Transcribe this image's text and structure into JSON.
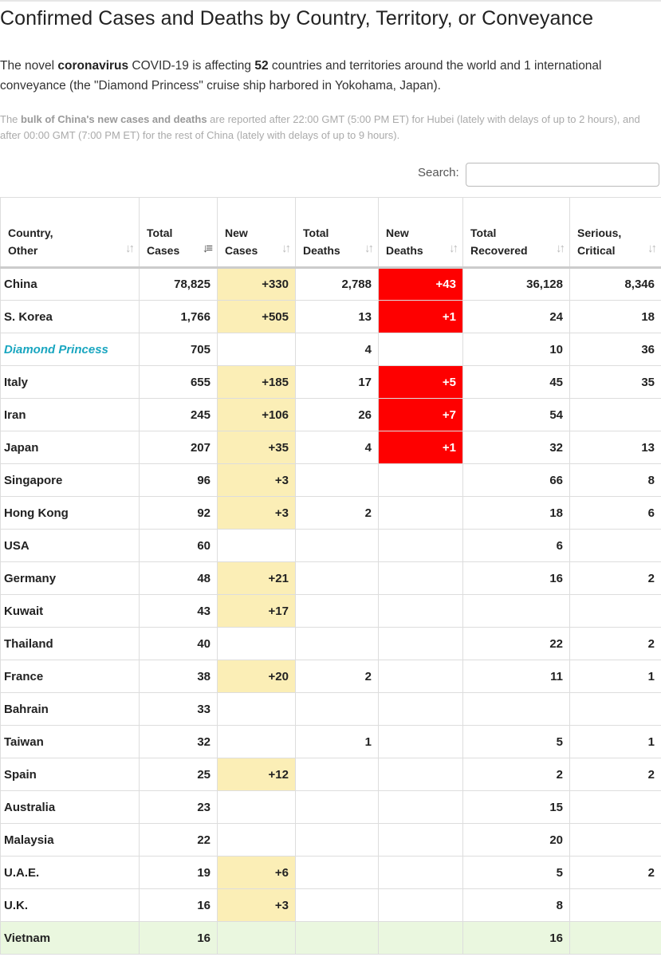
{
  "page": {
    "title": "Confirmed Cases and Deaths by Country, Territory, or Conveyance",
    "intro": {
      "t1": "The novel ",
      "b1": "coronavirus",
      "t2": " COVID-19 is affecting ",
      "b2": "52",
      "t3": " countries and territories around the world and 1 international conveyance (the \"Diamond Princess\" cruise ship harbored in Yokohama, Japan)."
    },
    "note": {
      "t1": "The ",
      "b1": "bulk of China's new cases and deaths",
      "t2": " are reported after 22:00 GMT (5:00 PM ET) for Hubei (lately with delays of up to 2 hours), and after 00:00 GMT (7:00 PM ET) for the rest of China (lately with delays of up to 9 hours)."
    }
  },
  "search": {
    "label": "Search:",
    "value": "",
    "placeholder": ""
  },
  "table": {
    "columns": [
      {
        "l1": "Country,",
        "l2": "Other",
        "sort": "unsorted"
      },
      {
        "l1": "Total",
        "l2": "Cases",
        "sort": "descending"
      },
      {
        "l1": "New",
        "l2": "Cases",
        "sort": "unsorted"
      },
      {
        "l1": "Total",
        "l2": "Deaths",
        "sort": "unsorted"
      },
      {
        "l1": "New",
        "l2": "Deaths",
        "sort": "unsorted"
      },
      {
        "l1": "Total",
        "l2": "Recovered",
        "sort": "unsorted"
      },
      {
        "l1": "Serious,",
        "l2": "Critical",
        "sort": "unsorted"
      }
    ],
    "rows": [
      {
        "country": "China",
        "total_cases": "78,825",
        "new_cases": "+330",
        "total_deaths": "2,788",
        "new_deaths": "+43",
        "total_recovered": "36,128",
        "serious_critical": "8,346"
      },
      {
        "country": "S. Korea",
        "total_cases": "1,766",
        "new_cases": "+505",
        "total_deaths": "13",
        "new_deaths": "+1",
        "total_recovered": "24",
        "serious_critical": "18"
      },
      {
        "country": "Diamond Princess",
        "conveyance": true,
        "total_cases": "705",
        "new_cases": "",
        "total_deaths": "4",
        "new_deaths": "",
        "total_recovered": "10",
        "serious_critical": "36"
      },
      {
        "country": "Italy",
        "total_cases": "655",
        "new_cases": "+185",
        "total_deaths": "17",
        "new_deaths": "+5",
        "total_recovered": "45",
        "serious_critical": "35"
      },
      {
        "country": "Iran",
        "total_cases": "245",
        "new_cases": "+106",
        "total_deaths": "26",
        "new_deaths": "+7",
        "total_recovered": "54",
        "serious_critical": ""
      },
      {
        "country": "Japan",
        "total_cases": "207",
        "new_cases": "+35",
        "total_deaths": "4",
        "new_deaths": "+1",
        "total_recovered": "32",
        "serious_critical": "13"
      },
      {
        "country": "Singapore",
        "total_cases": "96",
        "new_cases": "+3",
        "total_deaths": "",
        "new_deaths": "",
        "total_recovered": "66",
        "serious_critical": "8"
      },
      {
        "country": "Hong Kong",
        "total_cases": "92",
        "new_cases": "+3",
        "total_deaths": "2",
        "new_deaths": "",
        "total_recovered": "18",
        "serious_critical": "6"
      },
      {
        "country": "USA",
        "total_cases": "60",
        "new_cases": "",
        "total_deaths": "",
        "new_deaths": "",
        "total_recovered": "6",
        "serious_critical": ""
      },
      {
        "country": "Germany",
        "total_cases": "48",
        "new_cases": "+21",
        "total_deaths": "",
        "new_deaths": "",
        "total_recovered": "16",
        "serious_critical": "2"
      },
      {
        "country": "Kuwait",
        "total_cases": "43",
        "new_cases": "+17",
        "total_deaths": "",
        "new_deaths": "",
        "total_recovered": "",
        "serious_critical": ""
      },
      {
        "country": "Thailand",
        "total_cases": "40",
        "new_cases": "",
        "total_deaths": "",
        "new_deaths": "",
        "total_recovered": "22",
        "serious_critical": "2"
      },
      {
        "country": "France",
        "total_cases": "38",
        "new_cases": "+20",
        "total_deaths": "2",
        "new_deaths": "",
        "total_recovered": "11",
        "serious_critical": "1"
      },
      {
        "country": "Bahrain",
        "total_cases": "33",
        "new_cases": "",
        "total_deaths": "",
        "new_deaths": "",
        "total_recovered": "",
        "serious_critical": ""
      },
      {
        "country": "Taiwan",
        "total_cases": "32",
        "new_cases": "",
        "total_deaths": "1",
        "new_deaths": "",
        "total_recovered": "5",
        "serious_critical": "1"
      },
      {
        "country": "Spain",
        "total_cases": "25",
        "new_cases": "+12",
        "total_deaths": "",
        "new_deaths": "",
        "total_recovered": "2",
        "serious_critical": "2"
      },
      {
        "country": "Australia",
        "total_cases": "23",
        "new_cases": "",
        "total_deaths": "",
        "new_deaths": "",
        "total_recovered": "15",
        "serious_critical": ""
      },
      {
        "country": "Malaysia",
        "total_cases": "22",
        "new_cases": "",
        "total_deaths": "",
        "new_deaths": "",
        "total_recovered": "20",
        "serious_critical": ""
      },
      {
        "country": "U.A.E.",
        "total_cases": "19",
        "new_cases": "+6",
        "total_deaths": "",
        "new_deaths": "",
        "total_recovered": "5",
        "serious_critical": "2"
      },
      {
        "country": "U.K.",
        "total_cases": "16",
        "new_cases": "+3",
        "total_deaths": "",
        "new_deaths": "",
        "total_recovered": "8",
        "serious_critical": ""
      },
      {
        "country": "Vietnam",
        "highlight": "green",
        "total_cases": "16",
        "new_cases": "",
        "total_deaths": "",
        "new_deaths": "",
        "total_recovered": "16",
        "serious_critical": ""
      }
    ]
  },
  "colors": {
    "new_cases_bg": "#fbeeb6",
    "new_deaths_bg": "#fe0000",
    "conveyance_text": "#1aa6c0",
    "recovered_row_bg": "#eaf7df"
  }
}
